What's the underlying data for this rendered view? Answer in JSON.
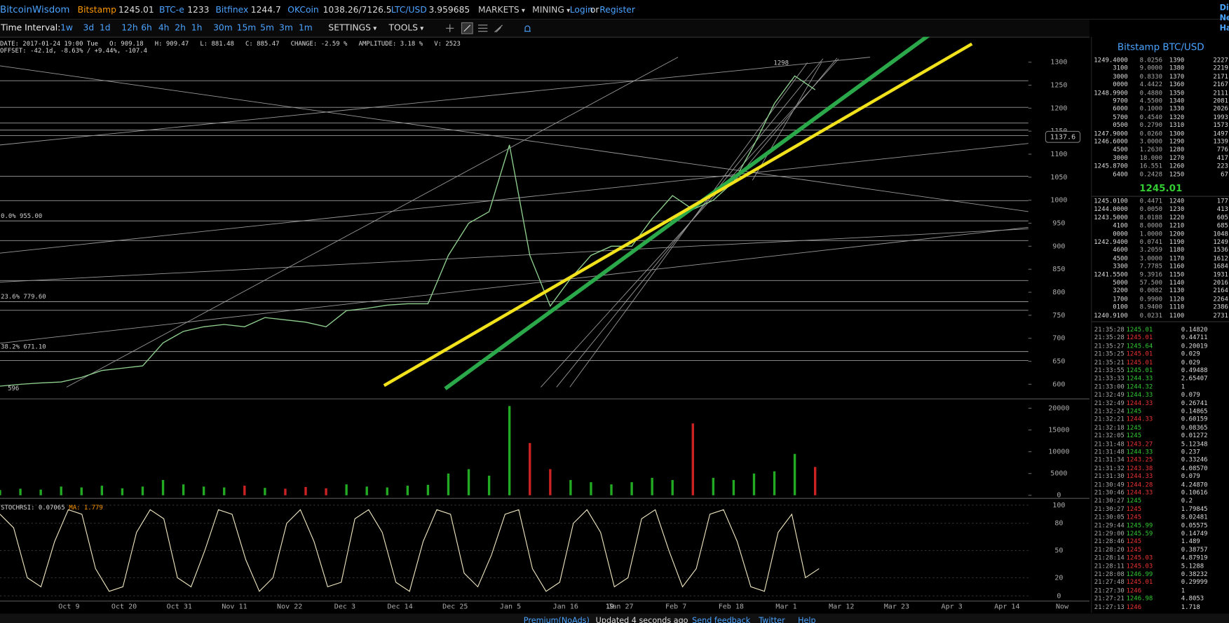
{
  "header": {
    "site": "BitcoinWisdom",
    "exchanges": [
      {
        "name": "Bitstamp",
        "price": "1245.01"
      },
      {
        "name": "BTC-e",
        "price": "1233"
      },
      {
        "name": "Bitfinex",
        "price": "1244.7"
      },
      {
        "name": "OKCoin",
        "price": "1038.26/7126.5"
      },
      {
        "name": "LTC/USD",
        "price": "3.959685"
      }
    ],
    "menus": [
      "MARKETS",
      "MINING"
    ],
    "login": "Login",
    "or": "or",
    "register": "Register",
    "edge": [
      "Di",
      "Ne",
      "Ha"
    ]
  },
  "toolbar": {
    "label": "Time Interval:",
    "intervals": [
      "1w",
      "3d",
      "1d",
      "12h",
      "6h",
      "4h",
      "2h",
      "1h",
      "30m",
      "15m",
      "5m",
      "3m",
      "1m"
    ],
    "settings": "SETTINGS",
    "tools": "TOOLS"
  },
  "info": {
    "line1": "DATE: 2017-01-24 19:00 Tue   O: 909.18   H: 909.47   L: 881.48   C: 885.47   CHANGE: -2.59 %   AMPLITUDE: 3.18 %   V: 2523",
    "line2": "OFFSET: -42.1d, -8.63% / +9.44%, -107.4"
  },
  "price_chart": {
    "ylim": [
      570,
      1355
    ],
    "yticks": [
      600,
      650,
      700,
      750,
      800,
      850,
      900,
      950,
      1000,
      1050,
      1100,
      1150,
      1200,
      1250,
      1300
    ],
    "line_color": "#8fd08f",
    "close": [
      596,
      600,
      603,
      605,
      615,
      630,
      635,
      640,
      690,
      715,
      725,
      730,
      725,
      745,
      740,
      735,
      725,
      760,
      765,
      772,
      775,
      775,
      880,
      950,
      975,
      1120,
      880,
      770,
      830,
      880,
      900,
      900,
      960,
      1010,
      980,
      1000,
      1040,
      1120,
      1210,
      1270,
      1240
    ],
    "peak": 1298,
    "cursor": 1137.6,
    "low": 596,
    "fib": [
      {
        "value": 955,
        "label": "0.0% 955.00"
      },
      {
        "value": 779.6,
        "label": "23.6% 779.60"
      },
      {
        "value": 671.1,
        "label": "38.2% 671.10"
      }
    ]
  },
  "x_labels": [
    "Oct 9",
    "Oct 20",
    "Oct 31",
    "Nov 11",
    "Nov 22",
    "Dec 3",
    "Dec 14",
    "Dec 25",
    "Jan 5",
    "Jan 16",
    "Jan 27",
    "Feb 7",
    "Feb 18",
    "Mar 1",
    "Mar 12",
    "Mar 23",
    "Apr 3",
    "Apr 14",
    "Now"
  ],
  "cursor_date": "19",
  "volume": {
    "ylim": [
      0,
      21600
    ],
    "yticks": [
      0,
      5000,
      10000,
      15000,
      20000
    ],
    "up_color": "#22aa22",
    "down_color": "#cc2222",
    "values": [
      1200,
      1500,
      1300,
      2000,
      1800,
      2200,
      1600,
      2000,
      3500,
      2500,
      2000,
      1800,
      2200,
      1700,
      1500,
      1900,
      1600,
      2500,
      2000,
      1800,
      2200,
      2400,
      5000,
      6000,
      4500,
      20500,
      12000,
      6000,
      3500,
      3000,
      2500,
      3000,
      4000,
      3500,
      16500,
      4000,
      3500,
      5000,
      5500,
      9500,
      6500
    ]
  },
  "stoch": {
    "label": "STOCHRSI: 0.07065",
    "ma_label": "MA: 1.779",
    "ylim": [
      -4,
      104
    ],
    "yticks": [
      0,
      20,
      50,
      80,
      100
    ],
    "color": "#efe6c0",
    "values": [
      90,
      75,
      20,
      10,
      60,
      95,
      90,
      30,
      5,
      10,
      70,
      95,
      85,
      20,
      10,
      50,
      95,
      90,
      40,
      5,
      20,
      80,
      95,
      60,
      10,
      15,
      85,
      95,
      70,
      15,
      5,
      60,
      95,
      90,
      25,
      10,
      45,
      90,
      95,
      30,
      5,
      15,
      80,
      95,
      70,
      10,
      20,
      85,
      95,
      50,
      10,
      30,
      90,
      95,
      60,
      10,
      5,
      70,
      90,
      20,
      30
    ]
  },
  "order_book": {
    "title": "Bitstamp BTC/USD",
    "last": "1245.01",
    "asks": [
      [
        "1249.4000",
        "8.0256",
        "1390",
        "2227"
      ],
      [
        "3100",
        "9.0000",
        "1380",
        "2219"
      ],
      [
        "3000",
        "0.8330",
        "1370",
        "2171"
      ],
      [
        "0000",
        "4.4422",
        "1360",
        "2167"
      ],
      [
        "1248.9900",
        "0.4880",
        "1350",
        "2111"
      ],
      [
        "9700",
        "4.5500",
        "1340",
        "2081"
      ],
      [
        "6000",
        "0.1000",
        "1330",
        "2026"
      ],
      [
        "5700",
        "0.4540",
        "1320",
        "1993"
      ],
      [
        "0500",
        "0.2790",
        "1310",
        "1573"
      ],
      [
        "1247.9000",
        "0.0260",
        "1300",
        "1497"
      ],
      [
        "1246.6000",
        "3.0000",
        "1290",
        "1339"
      ],
      [
        "4500",
        "1.2630",
        "1280",
        "776"
      ],
      [
        "3000",
        "18.000",
        "1270",
        "417"
      ],
      [
        "1245.8700",
        "16.551",
        "1260",
        "223"
      ],
      [
        "6400",
        "0.2428",
        "1250",
        "67"
      ]
    ],
    "bids": [
      [
        "1245.0100",
        "0.4471",
        "1240",
        "177"
      ],
      [
        "1244.0000",
        "0.0050",
        "1230",
        "413"
      ],
      [
        "1243.5000",
        "8.0188",
        "1220",
        "605"
      ],
      [
        "4100",
        "8.0000",
        "1210",
        "685"
      ],
      [
        "0000",
        "1.0000",
        "1200",
        "1048"
      ],
      [
        "1242.9400",
        "0.0741",
        "1190",
        "1249"
      ],
      [
        "4600",
        "3.2059",
        "1180",
        "1536"
      ],
      [
        "4500",
        "3.0000",
        "1170",
        "1612"
      ],
      [
        "3300",
        "7.7785",
        "1160",
        "1684"
      ],
      [
        "1241.5500",
        "9.3916",
        "1150",
        "1931"
      ],
      [
        "5000",
        "57.500",
        "1140",
        "2016"
      ],
      [
        "3200",
        "0.0082",
        "1130",
        "2164"
      ],
      [
        "1700",
        "0.9900",
        "1120",
        "2264"
      ],
      [
        "0100",
        "8.9400",
        "1110",
        "2386"
      ],
      [
        "1240.9100",
        "0.0231",
        "1100",
        "2731"
      ]
    ]
  },
  "trades": [
    [
      "21:35:28",
      "1245.01",
      "0.14820",
      "#3c3"
    ],
    [
      "21:35:28",
      "1245.01",
      "0.44711",
      "#e33"
    ],
    [
      "21:35:27",
      "1245.64",
      "0.20019",
      "#3c3"
    ],
    [
      "21:35:25",
      "1245.01",
      "0.029",
      "#e33"
    ],
    [
      "21:35:21",
      "1245.01",
      "0.029",
      "#e33"
    ],
    [
      "21:33:55",
      "1245.01",
      "0.49488",
      "#3c3"
    ],
    [
      "21:33:33",
      "1244.33",
      "2.65407",
      "#3c3"
    ],
    [
      "21:33:00",
      "1244.32",
      "1",
      "#3c3"
    ],
    [
      "21:32:49",
      "1244.33",
      "0.079",
      "#3c3"
    ],
    [
      "21:32:49",
      "1244.33",
      "0.26741",
      "#e33"
    ],
    [
      "21:32:24",
      "1245",
      "0.14865",
      "#3c3"
    ],
    [
      "21:32:21",
      "1244.33",
      "0.60159",
      "#e33"
    ],
    [
      "21:32:18",
      "1245",
      "0.08365",
      "#3c3"
    ],
    [
      "21:32:05",
      "1245",
      "0.01272",
      "#3c3"
    ],
    [
      "21:31:48",
      "1243.27",
      "5.12348",
      "#e33"
    ],
    [
      "21:31:48",
      "1244.33",
      "0.237",
      "#3c3"
    ],
    [
      "21:31:34",
      "1243.25",
      "0.33246",
      "#e33"
    ],
    [
      "21:31:32",
      "1243.38",
      "4.08570",
      "#e33"
    ],
    [
      "21:31:30",
      "1244.33",
      "0.079",
      "#e33"
    ],
    [
      "21:30:49",
      "1244.28",
      "4.24870",
      "#e33"
    ],
    [
      "21:30:46",
      "1244.33",
      "0.10616",
      "#e33"
    ],
    [
      "21:30:27",
      "1245",
      "0.2",
      "#3c3"
    ],
    [
      "21:30:27",
      "1245",
      "1.79845",
      "#e33"
    ],
    [
      "21:30:05",
      "1245",
      "8.02481",
      "#e33"
    ],
    [
      "21:29:44",
      "1245.99",
      "0.05575",
      "#3c3"
    ],
    [
      "21:29:00",
      "1245.59",
      "0.14749",
      "#3c3"
    ],
    [
      "21:28:46",
      "1245",
      "1.489",
      "#e33"
    ],
    [
      "21:28:20",
      "1245",
      "0.38757",
      "#e33"
    ],
    [
      "21:28:14",
      "1245.03",
      "4.87919",
      "#e33"
    ],
    [
      "21:28:11",
      "1245.03",
      "5.1288",
      "#e33"
    ],
    [
      "21:28:08",
      "1246.99",
      "0.38232",
      "#3c3"
    ],
    [
      "21:27:48",
      "1245.01",
      "0.29999",
      "#e33"
    ],
    [
      "21:27:30",
      "1246",
      "1",
      "#e33"
    ],
    [
      "21:27:21",
      "1246.98",
      "4.8053",
      "#3c3"
    ],
    [
      "21:27:13",
      "1246",
      "1.718",
      "#e33"
    ]
  ],
  "footer": [
    "Premium(NoAds)",
    "Updated 4 seconds ago",
    "Send feedback",
    "Twitter",
    "Help"
  ]
}
